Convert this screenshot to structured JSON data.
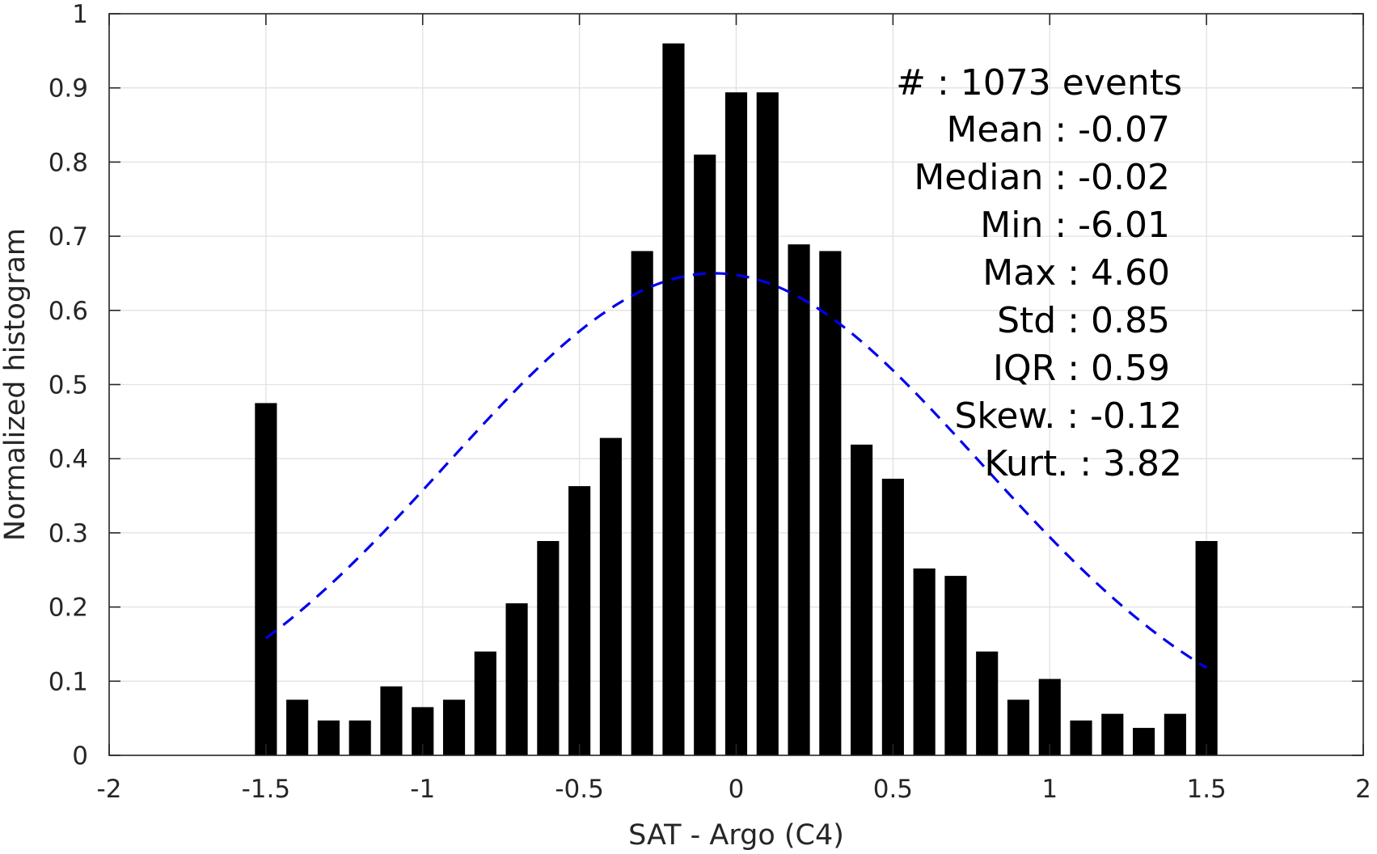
{
  "chart_data": {
    "type": "bar",
    "xlabel": "SAT - Argo (C4)",
    "ylabel": "Normalized histogram",
    "xlim": [
      -2,
      2
    ],
    "ylim": [
      0,
      1
    ],
    "xticks": [
      "-2",
      "-1.5",
      "-1",
      "-0.5",
      "0",
      "0.5",
      "1",
      "1.5",
      "2"
    ],
    "yticks": [
      "0",
      "0.1",
      "0.2",
      "0.3",
      "0.4",
      "0.5",
      "0.6",
      "0.7",
      "0.8",
      "0.9",
      "1"
    ],
    "grid": true,
    "bar_color": "#000000",
    "bar_width": 0.07,
    "x": [
      -1.5,
      -1.4,
      -1.3,
      -1.2,
      -1.1,
      -1.0,
      -0.9,
      -0.8,
      -0.7,
      -0.6,
      -0.5,
      -0.4,
      -0.3,
      -0.2,
      -0.1,
      0.0,
      0.1,
      0.2,
      0.3,
      0.4,
      0.5,
      0.6,
      0.7,
      0.8,
      0.9,
      1.0,
      1.1,
      1.2,
      1.3,
      1.4,
      1.5
    ],
    "values": [
      0.475,
      0.075,
      0.047,
      0.047,
      0.093,
      0.065,
      0.075,
      0.14,
      0.205,
      0.289,
      0.363,
      0.428,
      0.68,
      0.96,
      0.81,
      0.894,
      0.894,
      0.689,
      0.68,
      0.419,
      0.373,
      0.252,
      0.242,
      0.14,
      0.075,
      0.103,
      0.047,
      0.056,
      0.037,
      0.056,
      0.289
    ],
    "fit_curve": {
      "style": "dashed",
      "color": "#0000ee",
      "mean": -0.07,
      "std": 0.85,
      "peak": 0.65,
      "x_range": [
        -1.5,
        1.5
      ]
    }
  },
  "stats": {
    "events": "#  : 1073 events",
    "mean": "Mean : -0.07",
    "median": "Median : -0.02",
    "min": "Min : -6.01",
    "max": "Max : 4.60",
    "std": "Std : 0.85",
    "iqr": "IQR : 0.59",
    "skew": "Skew. : -0.12",
    "kurt": "Kurt. : 3.82"
  }
}
